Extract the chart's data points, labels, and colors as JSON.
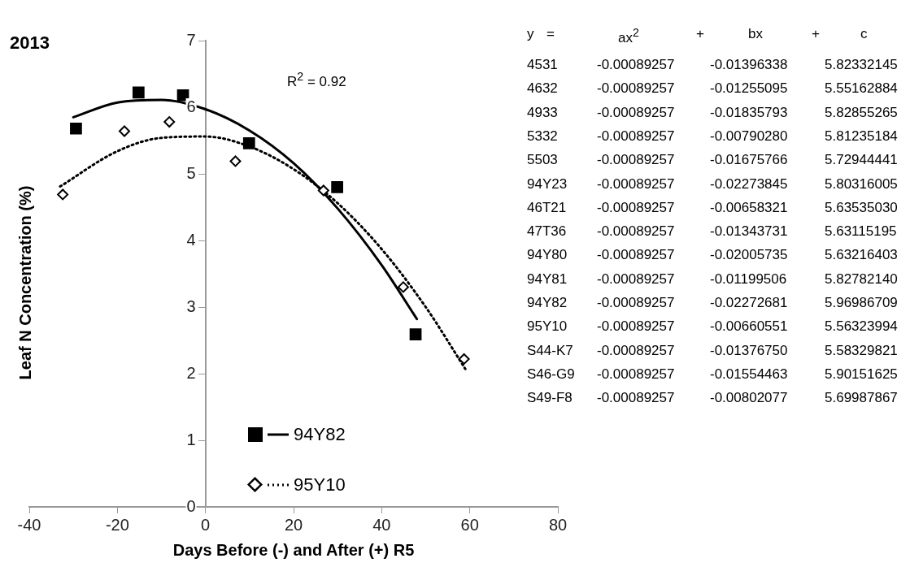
{
  "chart_data": [
    {
      "type": "scatter",
      "title": "2013",
      "xlabel": "Days Before (-) and After (+) R5",
      "ylabel": "Leaf N Concentration (%)",
      "xlim": [
        -40,
        80
      ],
      "xticks": [
        -40,
        -20,
        0,
        20,
        40,
        60,
        80
      ],
      "ylim": [
        0,
        7
      ],
      "yticks": [
        0,
        1,
        2,
        3,
        4,
        5,
        6,
        7
      ],
      "grid": false,
      "legend": "bottom",
      "annotations": [
        "R$^{2}$ = 0.92"
      ],
      "series": [
        {
          "name": "94Y82",
          "type": "scatter",
          "marker": "square",
          "color": "#000000",
          "x": [
            -29.4,
            -15.2,
            -5.1,
            9.9,
            29.9,
            47.7
          ],
          "values": [
            5.68,
            6.22,
            6.18,
            5.46,
            4.8,
            2.59
          ]
        },
        {
          "type": "line",
          "line_style": "solid",
          "marker": "none",
          "color": "#000000",
          "x": [
            -30,
            -20,
            -10,
            0,
            10,
            20,
            30,
            40,
            48
          ],
          "values": [
            5.85,
            6.07,
            6.11,
            5.97,
            5.65,
            5.16,
            4.48,
            3.63,
            2.82
          ]
        },
        {
          "name": "95Y10",
          "type": "scatter",
          "marker": "diamond",
          "color": "#000000",
          "x": [
            -32.4,
            -18.4,
            -8.2,
            6.8,
            26.8,
            44.9,
            58.7
          ],
          "values": [
            4.69,
            5.64,
            5.78,
            5.19,
            4.75,
            3.3,
            2.22
          ]
        },
        {
          "type": "line",
          "line_style": "dotted",
          "marker": "none",
          "color": "#000000",
          "x": [
            -33,
            -20,
            -10,
            0,
            10,
            20,
            30,
            40,
            50,
            59
          ],
          "values": [
            4.81,
            5.34,
            5.54,
            5.56,
            5.41,
            5.07,
            4.56,
            3.87,
            3.0,
            2.07
          ]
        }
      ]
    },
    {
      "type": "other",
      "annotations": [
        "y = ax$^{2}$ + bx + c",
        "4531 -0.00089257 -0.01396338 5.82332145",
        "4632 -0.00089257 -0.01255095 5.55162884",
        "4933 -0.00089257 -0.01835793 5.82855265",
        "5332 -0.00089257 -0.00790280 5.81235184",
        "5503 -0.00089257 -0.01675766 5.72944441",
        "94Y23 -0.00089257 -0.02273845 5.80316005",
        "46T21 -0.00089257 -0.00658321 5.63535030",
        "47T36 -0.00089257 -0.01343731 5.63115195",
        "94Y80 -0.00089257 -0.02005735 5.63216403",
        "94Y81 -0.00089257 -0.01199506 5.82782140",
        "94Y82 -0.00089257 -0.02272681 5.96986709",
        "95Y10 -0.00089257 -0.00660551 5.56323994",
        "S44-K7 -0.00089257 -0.01376750 5.58329821",
        "S46-G9 -0.00089257 -0.01554463 5.90151625",
        "S49-F8 -0.00089257 -0.00802077 5.69987867"
      ]
    }
  ]
}
